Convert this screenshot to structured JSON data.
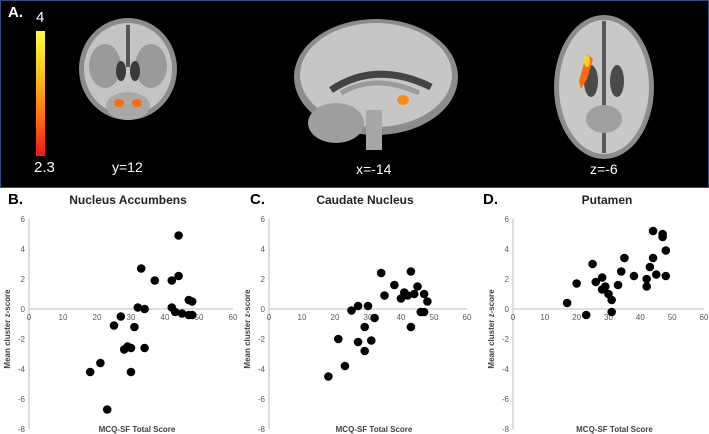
{
  "panel_a": {
    "letter": "A.",
    "colorbar": {
      "max_label": "4",
      "min_label": "2.3",
      "colors": [
        "#ffff3c",
        "#ffc21a",
        "#ff6a10",
        "#e81a1a"
      ]
    },
    "slices": [
      {
        "name": "coronal",
        "label": "y=12"
      },
      {
        "name": "sagittal",
        "label": "x=-14"
      },
      {
        "name": "axial",
        "label": "z=-6"
      }
    ]
  },
  "chart_data": [
    {
      "type": "scatter",
      "letter": "B.",
      "title": "Nucleus Accumbens",
      "xlabel": "MCQ-SF Total Score",
      "ylabel": "Mean cluster z-score",
      "xlim": [
        0,
        60
      ],
      "ylim": [
        -8,
        6
      ],
      "xticks": [
        "0",
        "10",
        "20",
        "30",
        "40",
        "50",
        "60"
      ],
      "yticks": [
        "6",
        "4",
        "2",
        "0",
        "-2",
        "-4",
        "-6",
        "-8"
      ],
      "points": [
        {
          "x": 18,
          "y": -4.2
        },
        {
          "x": 21,
          "y": -3.6
        },
        {
          "x": 23,
          "y": -6.7
        },
        {
          "x": 25,
          "y": -1.1
        },
        {
          "x": 27,
          "y": -0.5
        },
        {
          "x": 28,
          "y": -2.7
        },
        {
          "x": 29,
          "y": -2.5
        },
        {
          "x": 30,
          "y": -4.2
        },
        {
          "x": 30,
          "y": -2.6
        },
        {
          "x": 31,
          "y": -1.2
        },
        {
          "x": 32,
          "y": 0.1
        },
        {
          "x": 33,
          "y": 2.7
        },
        {
          "x": 34,
          "y": -2.6
        },
        {
          "x": 34,
          "y": 0.0
        },
        {
          "x": 37,
          "y": 1.9
        },
        {
          "x": 42,
          "y": 0.1
        },
        {
          "x": 42,
          "y": 1.9
        },
        {
          "x": 43,
          "y": -0.2
        },
        {
          "x": 44,
          "y": 2.2
        },
        {
          "x": 44,
          "y": 4.9
        },
        {
          "x": 45,
          "y": -0.3
        },
        {
          "x": 47,
          "y": 0.6
        },
        {
          "x": 47,
          "y": -0.4
        },
        {
          "x": 48,
          "y": -0.4
        },
        {
          "x": 48,
          "y": 0.5
        }
      ]
    },
    {
      "type": "scatter",
      "letter": "C.",
      "title": "Caudate Nucleus",
      "xlabel": "MCQ-SF Total Score",
      "ylabel": "Mean cluster z-score",
      "xlim": [
        0,
        60
      ],
      "ylim": [
        -8,
        6
      ],
      "xticks": [
        "0",
        "10",
        "20",
        "30",
        "40",
        "50",
        "60"
      ],
      "yticks": [
        "6",
        "4",
        "2",
        "0",
        "-2",
        "-4",
        "-6",
        "-8"
      ],
      "points": [
        {
          "x": 18,
          "y": -4.5
        },
        {
          "x": 21,
          "y": -2.0
        },
        {
          "x": 23,
          "y": -3.8
        },
        {
          "x": 25,
          "y": -0.1
        },
        {
          "x": 27,
          "y": 0.2
        },
        {
          "x": 27,
          "y": -2.2
        },
        {
          "x": 29,
          "y": -1.2
        },
        {
          "x": 29,
          "y": -2.8
        },
        {
          "x": 30,
          "y": 0.2
        },
        {
          "x": 31,
          "y": -2.1
        },
        {
          "x": 32,
          "y": -0.6
        },
        {
          "x": 34,
          "y": 2.4
        },
        {
          "x": 35,
          "y": 0.9
        },
        {
          "x": 38,
          "y": 1.6
        },
        {
          "x": 40,
          "y": 0.7
        },
        {
          "x": 41,
          "y": 1.1
        },
        {
          "x": 42,
          "y": 0.9
        },
        {
          "x": 43,
          "y": 2.5
        },
        {
          "x": 43,
          "y": -1.2
        },
        {
          "x": 44,
          "y": 1.0
        },
        {
          "x": 45,
          "y": 1.5
        },
        {
          "x": 46,
          "y": -0.2
        },
        {
          "x": 47,
          "y": 1.0
        },
        {
          "x": 47,
          "y": -0.2
        },
        {
          "x": 48,
          "y": 0.5
        }
      ]
    },
    {
      "type": "scatter",
      "letter": "D.",
      "title": "Putamen",
      "xlabel": "MCQ-SF Total Score",
      "ylabel": "Mean cluster z-score",
      "xlim": [
        0,
        60
      ],
      "ylim": [
        -8,
        6
      ],
      "xticks": [
        "0",
        "10",
        "20",
        "30",
        "40",
        "50",
        "60"
      ],
      "yticks": [
        "6",
        "4",
        "2",
        "0",
        "-2",
        "-4",
        "-6",
        "-8"
      ],
      "points": [
        {
          "x": 17,
          "y": 0.4
        },
        {
          "x": 20,
          "y": 1.7
        },
        {
          "x": 23,
          "y": -0.4
        },
        {
          "x": 25,
          "y": 3.0
        },
        {
          "x": 26,
          "y": 1.8
        },
        {
          "x": 28,
          "y": 2.1
        },
        {
          "x": 28,
          "y": 1.3
        },
        {
          "x": 29,
          "y": 1.5
        },
        {
          "x": 30,
          "y": 1.0
        },
        {
          "x": 31,
          "y": 0.6
        },
        {
          "x": 31,
          "y": -0.2
        },
        {
          "x": 33,
          "y": 1.6
        },
        {
          "x": 34,
          "y": 2.5
        },
        {
          "x": 35,
          "y": 3.4
        },
        {
          "x": 38,
          "y": 2.2
        },
        {
          "x": 42,
          "y": 2.0
        },
        {
          "x": 42,
          "y": 1.5
        },
        {
          "x": 43,
          "y": 2.8
        },
        {
          "x": 44,
          "y": 3.4
        },
        {
          "x": 44,
          "y": 5.2
        },
        {
          "x": 45,
          "y": 2.3
        },
        {
          "x": 47,
          "y": 5.0
        },
        {
          "x": 47,
          "y": 4.8
        },
        {
          "x": 48,
          "y": 3.9
        },
        {
          "x": 48,
          "y": 2.2
        }
      ]
    }
  ]
}
